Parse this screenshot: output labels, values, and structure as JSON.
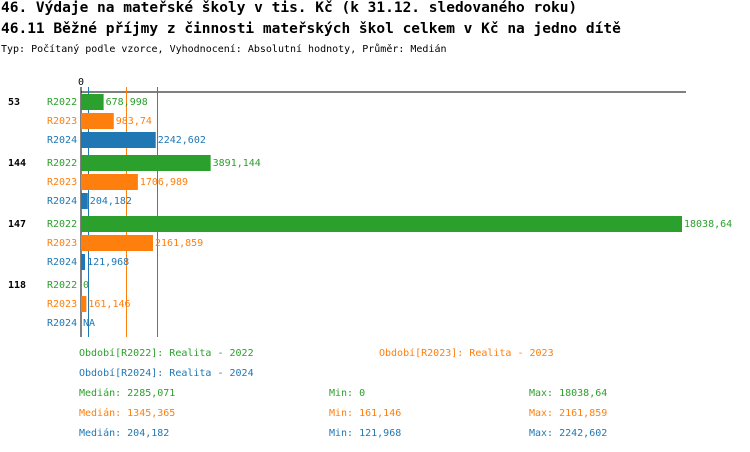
{
  "header": {
    "title": "46. Výdaje na mateřské školy v tis. Kč (k 31.12. sledovaného roku)",
    "subtitle": "46.11 Běžné příjmy z činnosti mateřských škol celkem v Kč na jedno dítě",
    "type_line": "Typ: Počítaný podle vzorce, Vyhodnocení: Absolutní hodnoty, Průměr: Medián"
  },
  "colors": {
    "R2022": "#2ca02c",
    "R2023": "#ff7f0e",
    "R2024": "#1f77b4"
  },
  "chart_data": {
    "type": "bar",
    "orientation": "horizontal",
    "categories": [
      "53",
      "144",
      "147",
      "118"
    ],
    "x_axis_zero_label": "0",
    "xlim": [
      0,
      18038.64
    ],
    "series": [
      {
        "name": "R2022",
        "values": [
          678.998,
          3891.144,
          18038.64,
          0
        ],
        "labels": [
          "678,998",
          "3891,144",
          "18038,64",
          "0"
        ]
      },
      {
        "name": "R2023",
        "values": [
          983.74,
          1706.989,
          2161.859,
          161.146
        ],
        "labels": [
          "983,74",
          "1706,989",
          "2161,859",
          "161,146"
        ]
      },
      {
        "name": "R2024",
        "values": [
          2242.602,
          204.182,
          121.968,
          null
        ],
        "labels": [
          "2242,602",
          "204,182",
          "121,968",
          "NA"
        ]
      }
    ],
    "median_lines": {
      "R2022": 2285.071,
      "R2023": 1345.365,
      "R2024": 204.182
    }
  },
  "legend": {
    "periods": [
      {
        "series": "R2022",
        "text": "Období[R2022]: Realita - 2022"
      },
      {
        "series": "R2023",
        "text": "Období[R2023]: Realita - 2023"
      },
      {
        "series": "R2024",
        "text": "Období[R2024]: Realita - 2024"
      }
    ],
    "stats": [
      {
        "series": "R2022",
        "median": "Medián: 2285,071",
        "min": "Min: 0",
        "max": "Max: 18038,64"
      },
      {
        "series": "R2023",
        "median": "Medián: 1345,365",
        "min": "Min: 161,146",
        "max": "Max: 2161,859"
      },
      {
        "series": "R2024",
        "median": "Medián: 204,182",
        "min": "Min: 121,968",
        "max": "Max: 2242,602"
      }
    ]
  }
}
